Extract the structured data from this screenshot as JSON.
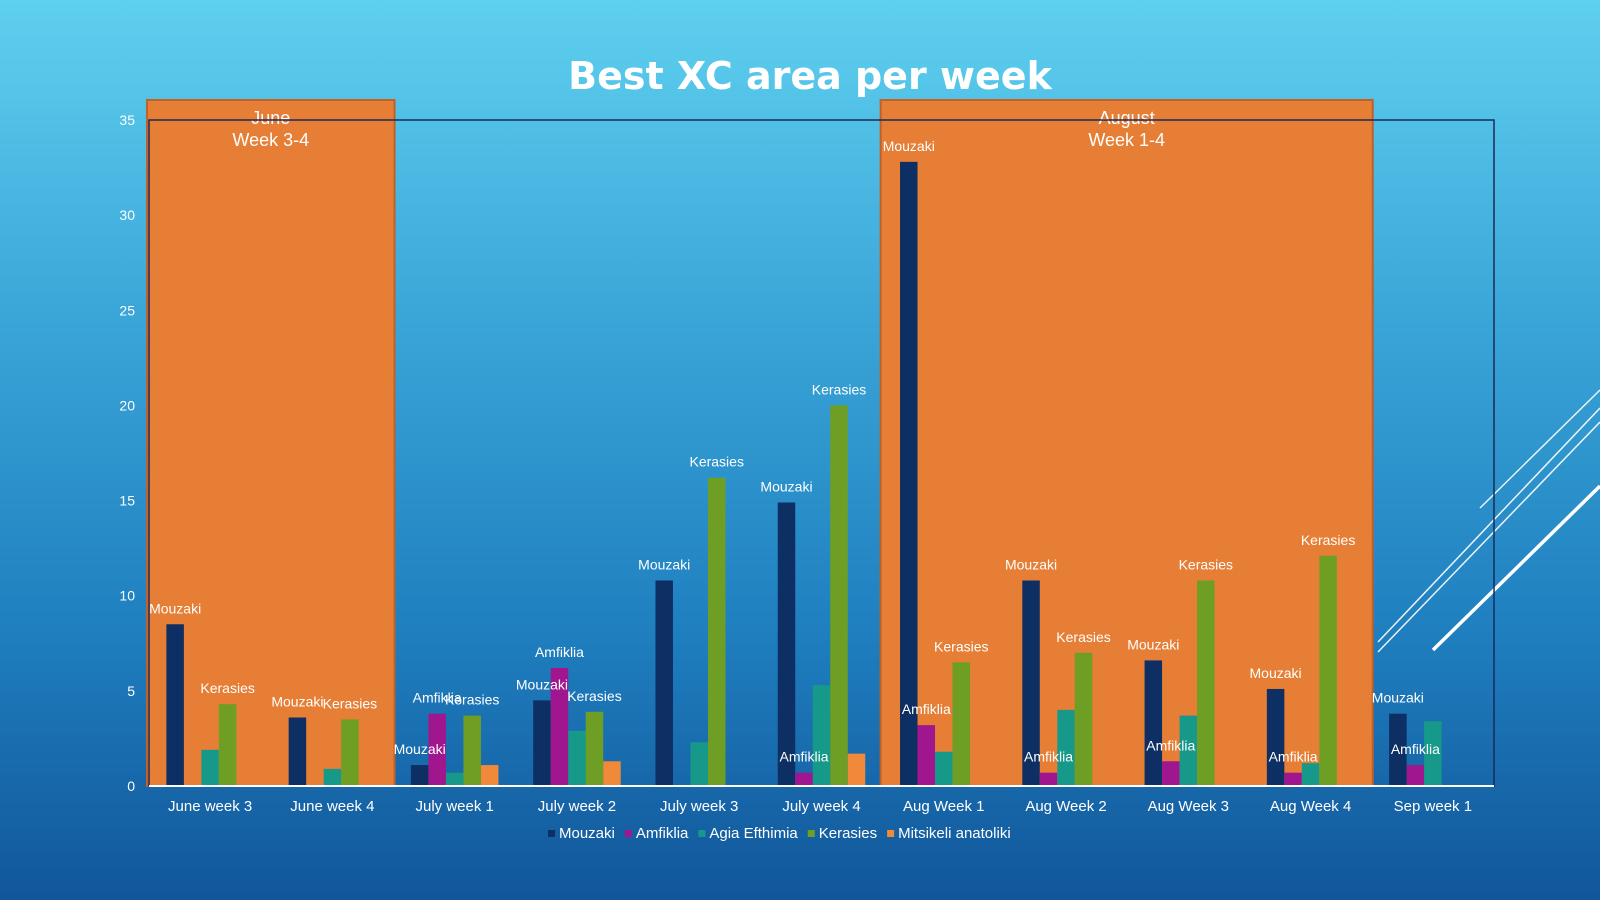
{
  "chart_data": {
    "type": "bar",
    "title": "Best XC area per week",
    "xlabel": "",
    "ylabel": "",
    "ylim": [
      0,
      35
    ],
    "yticks": [
      0,
      5,
      10,
      15,
      20,
      25,
      30,
      35
    ],
    "grid": false,
    "legend": "bottom",
    "categories": [
      "June week 3",
      "June week 4",
      "July week 1",
      "July week 2",
      "July week 3",
      "July week 4",
      "Aug Week 1",
      "Aug Week 2",
      "Aug Week 3",
      "Aug Week 4",
      "Sep week 1"
    ],
    "series": [
      {
        "name": "Mouzaki",
        "color": "#0d2f63",
        "values": [
          8.5,
          3.6,
          1.1,
          4.5,
          10.8,
          14.9,
          32.8,
          10.8,
          6.6,
          5.1,
          3.8
        ]
      },
      {
        "name": "Amfiklia",
        "color": "#a0168f",
        "values": [
          0,
          0,
          3.8,
          6.2,
          0,
          0.7,
          3.2,
          0.7,
          1.3,
          0.7,
          1.1
        ]
      },
      {
        "name": "Agia Efthimia",
        "color": "#17998a",
        "values": [
          1.9,
          0.9,
          0.7,
          2.9,
          2.3,
          5.3,
          1.8,
          4.0,
          3.7,
          1.2,
          3.4
        ]
      },
      {
        "name": "Kerasies",
        "color": "#6e9f24",
        "values": [
          4.3,
          3.5,
          3.7,
          3.9,
          16.2,
          20.0,
          6.5,
          7.0,
          10.8,
          12.1,
          0
        ]
      },
      {
        "name": "Mitsikeli anatoliki",
        "color": "#f0893a",
        "values": [
          0,
          0,
          1.1,
          1.3,
          0,
          1.7,
          0,
          0,
          0,
          0,
          0
        ]
      }
    ],
    "data_labels": [
      {
        "category_index": 0,
        "series_index": 0,
        "text": "Mouzaki"
      },
      {
        "category_index": 0,
        "series_index": 3,
        "text": "Kerasies"
      },
      {
        "category_index": 1,
        "series_index": 0,
        "text": "Mouzaki"
      },
      {
        "category_index": 1,
        "series_index": 3,
        "text": "Kerasies"
      },
      {
        "category_index": 2,
        "series_index": 0,
        "text": "Mouzaki"
      },
      {
        "category_index": 2,
        "series_index": 1,
        "text": "Amfiklia"
      },
      {
        "category_index": 2,
        "series_index": 3,
        "text": "Kerasies"
      },
      {
        "category_index": 3,
        "series_index": 0,
        "text": "Mouzaki"
      },
      {
        "category_index": 3,
        "series_index": 1,
        "text": "Amfiklia"
      },
      {
        "category_index": 3,
        "series_index": 3,
        "text": "Kerasies"
      },
      {
        "category_index": 4,
        "series_index": 0,
        "text": "Mouzaki"
      },
      {
        "category_index": 4,
        "series_index": 3,
        "text": "Kerasies"
      },
      {
        "category_index": 5,
        "series_index": 0,
        "text": "Mouzaki"
      },
      {
        "category_index": 5,
        "series_index": 1,
        "text": "Amfiklia"
      },
      {
        "category_index": 5,
        "series_index": 3,
        "text": "Kerasies"
      },
      {
        "category_index": 6,
        "series_index": 0,
        "text": "Mouzaki"
      },
      {
        "category_index": 6,
        "series_index": 1,
        "text": "Amfiklia"
      },
      {
        "category_index": 6,
        "series_index": 3,
        "text": "Kerasies"
      },
      {
        "category_index": 7,
        "series_index": 0,
        "text": "Mouzaki"
      },
      {
        "category_index": 7,
        "series_index": 1,
        "text": "Amfiklia"
      },
      {
        "category_index": 7,
        "series_index": 3,
        "text": "Kerasies"
      },
      {
        "category_index": 8,
        "series_index": 0,
        "text": "Mouzaki"
      },
      {
        "category_index": 8,
        "series_index": 1,
        "text": "Amfiklia"
      },
      {
        "category_index": 8,
        "series_index": 3,
        "text": "Kerasies"
      },
      {
        "category_index": 9,
        "series_index": 0,
        "text": "Mouzaki"
      },
      {
        "category_index": 9,
        "series_index": 1,
        "text": "Amfiklia"
      },
      {
        "category_index": 9,
        "series_index": 3,
        "text": "Kerasies"
      },
      {
        "category_index": 10,
        "series_index": 0,
        "text": "Mouzaki"
      },
      {
        "category_index": 10,
        "series_index": 1,
        "text": "Amfiklia"
      }
    ],
    "highlights": [
      {
        "name": "june",
        "from_category": 0,
        "to_category": 1,
        "line1": "June",
        "line2": "Week 3-4"
      },
      {
        "name": "august",
        "from_category": 6,
        "to_category": 9,
        "line1": "August",
        "line2": "Week 1-4"
      }
    ],
    "highlight_color": "#e67e35"
  }
}
